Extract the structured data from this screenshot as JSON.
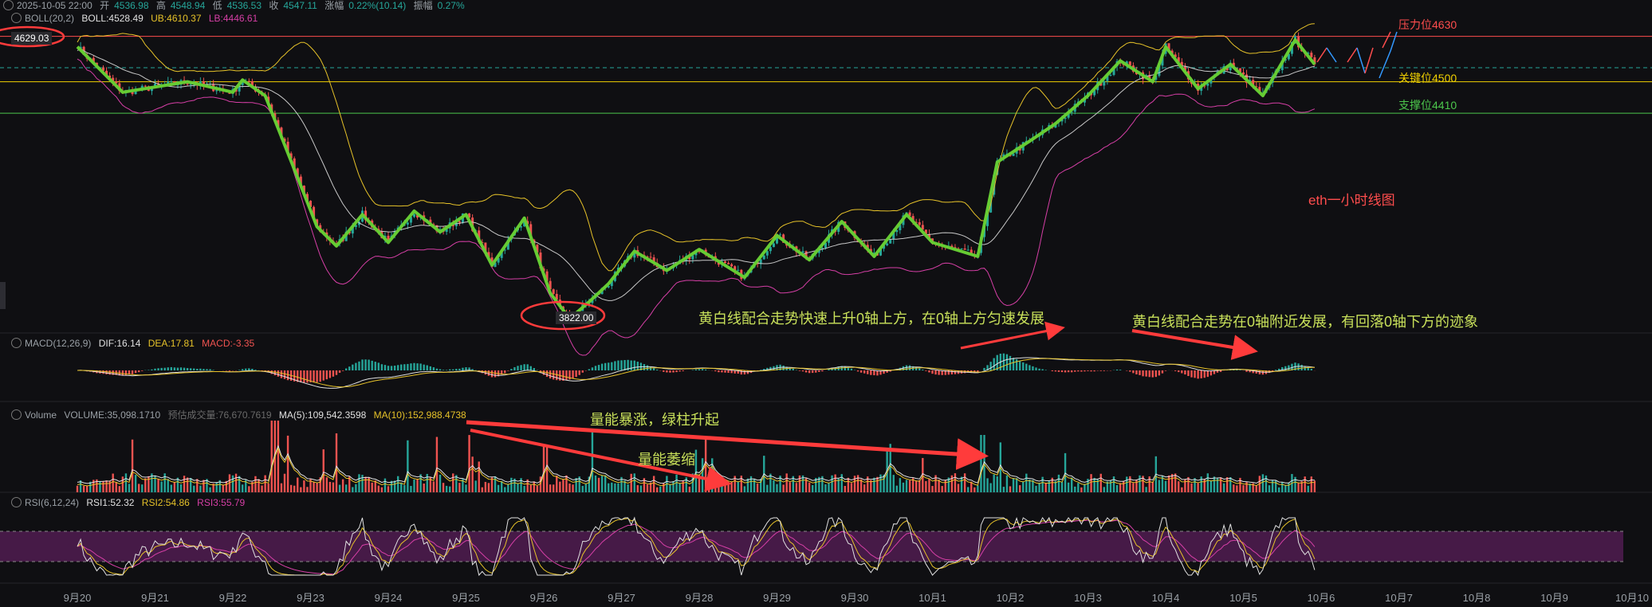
{
  "ohlc_bar": {
    "datetime": "2025-10-05 22:00",
    "open_label": "开",
    "open": "4536.98",
    "high_label": "高",
    "high": "4548.94",
    "low_label": "低",
    "low": "4536.53",
    "close_label": "收",
    "close": "4547.11",
    "change_label": "涨幅",
    "change": "0.22%(10.14)",
    "amp_label": "振幅",
    "amp": "0.27%"
  },
  "boll_legend": {
    "name": "BOLL(20,2)",
    "mid": "BOLL:4528.49",
    "ub": "UB:4610.37",
    "lb": "LB:4446.61"
  },
  "macd_legend": {
    "name": "MACD(12,26,9)",
    "dif": "DIF:16.14",
    "dea": "DEA:17.81",
    "macd": "MACD:-3.35"
  },
  "volume_legend": {
    "name": "Volume",
    "volume": "VOLUME:35,098.1710",
    "est": "预估成交量:76,670.7619",
    "ma5": "MA(5):109,542.3598",
    "ma10": "MA(10):152,988.4738"
  },
  "rsi_legend": {
    "name": "RSI(6,12,24)",
    "rsi1": "RSI1:52.32",
    "rsi2": "RSI2:54.86",
    "rsi3": "RSI3:55.79"
  },
  "levels": {
    "resistance": "压力位4630",
    "key": "关键位4500",
    "support": "支撑位4410",
    "high_marker": "4629.03",
    "low_marker": "3822.00"
  },
  "annotations": {
    "title": "eth一小时线图",
    "macd_note1": "黄白线配合走势快速上升0轴上方，在0轴上方匀速发展",
    "macd_note2": "黄白线配合走势在0轴附近发展，有回落0轴下方的迹象",
    "vol_note1": "量能暴涨，绿柱升起",
    "vol_note2": "量能萎缩"
  },
  "colors": {
    "up": "#26a69a",
    "down": "#ef5350",
    "boll_upper": "#e6c229",
    "boll_mid": "#c8c8c8",
    "boll_lower": "#d63fa6",
    "zigzag": "#66cc33",
    "resistance": "#ff4d4d",
    "key": "#f0d000",
    "support": "#4cc74c",
    "annotation_text": "#c8e05a",
    "arrow": "#ff3b3b",
    "rsi_band": "#5a1f5a"
  },
  "chart_data": {
    "type": "line",
    "title": "eth一小时线图",
    "x_ticks": [
      "9月20",
      "9月21",
      "9月22",
      "9月23",
      "9月24",
      "9月25",
      "9月26",
      "9月27",
      "9月28",
      "9月29",
      "9月30",
      "10月1",
      "10月2",
      "10月3",
      "10月4",
      "10月5",
      "10月6",
      "10月7",
      "10月8",
      "10月9",
      "10月10"
    ],
    "price_levels": [
      {
        "name": "压力位",
        "value": 4630
      },
      {
        "name": "关键位",
        "value": 4500
      },
      {
        "name": "支撑位",
        "value": 4410
      }
    ],
    "price_swing_path": {
      "x": [
        "9月20 00:00",
        "9月20 14:00",
        "9月21 10:00",
        "9月22 00:00",
        "9月22 03:00",
        "9月22 10:00",
        "9月23 02:00",
        "9月23 08:00",
        "9月23 16:00",
        "9月24 00:00",
        "9月24 08:00",
        "9月24 16:00",
        "9月25 00:00",
        "9月25 08:00",
        "9月25 18:00",
        "9月26 02:00",
        "9月26 08:00",
        "9月26 14:00",
        "9月26 20:00",
        "9月27 04:00",
        "9月27 14:00",
        "9月28 00:00",
        "9月28 14:00",
        "9月29 00:00",
        "9月29 10:00",
        "9月29 20:00",
        "9月30 06:00",
        "9月30 16:00",
        "10月1 00:00",
        "10月1 14:00",
        "10月1 20:00",
        "10月2 06:00",
        "10月2 14:00",
        "10月3 00:00",
        "10月3 10:00",
        "10月3 20:00",
        "10月4 00:00",
        "10月4 10:00",
        "10月4 20:00",
        "10月5 06:00",
        "10月5 16:00",
        "10月5 22:00"
      ],
      "y": [
        4600,
        4470,
        4500,
        4470,
        4505,
        4460,
        4085,
        4030,
        4120,
        4040,
        4130,
        4070,
        4120,
        3975,
        4110,
        3895,
        3822,
        3870,
        3922,
        4015,
        3960,
        4020,
        3940,
        4060,
        3990,
        4100,
        4000,
        4120,
        4040,
        4000,
        4270,
        4330,
        4380,
        4460,
        4560,
        4500,
        4600,
        4480,
        4550,
        4460,
        4620,
        4550
      ]
    },
    "marked_high": 4629.03,
    "marked_low": 3822.0,
    "last_bar": {
      "open": 4536.98,
      "high": 4548.94,
      "low": 4536.53,
      "close": 4547.11
    },
    "boll": {
      "mid": 4528.49,
      "upper": 4610.37,
      "lower": 4446.61
    },
    "macd": {
      "dif": 16.14,
      "dea": 17.81,
      "macd": -3.35
    },
    "volume": {
      "volume": 35098.171,
      "ma5": 109542.3598,
      "ma10": 152988.4738
    },
    "rsi": {
      "rsi6": 52.32,
      "rsi12": 54.86,
      "rsi24": 55.79
    },
    "grid": false
  }
}
